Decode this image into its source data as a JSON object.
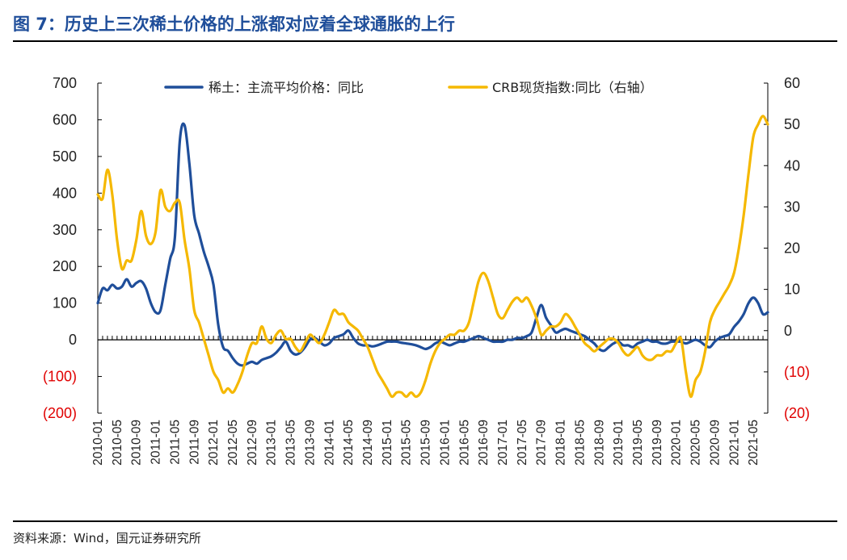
{
  "page": {
    "title": "图 7：历史上三次稀土价格的上涨都对应着全球通胀的上行",
    "source": "资料来源：Wind，国元证券研究所"
  },
  "colors": {
    "title": "#1f4e9a",
    "series_rare_earth": "#1f4e9a",
    "series_crb": "#f5b800",
    "negative_tick": "#e00000",
    "tick": "#222222"
  },
  "chart_data": {
    "type": "line",
    "title": "",
    "x": [
      "2010-01",
      "2010-02",
      "2010-03",
      "2010-04",
      "2010-05",
      "2010-06",
      "2010-07",
      "2010-08",
      "2010-09",
      "2010-10",
      "2010-11",
      "2010-12",
      "2011-01",
      "2011-02",
      "2011-03",
      "2011-04",
      "2011-05",
      "2011-06",
      "2011-07",
      "2011-08",
      "2011-09",
      "2011-10",
      "2011-11",
      "2011-12",
      "2012-01",
      "2012-02",
      "2012-03",
      "2012-04",
      "2012-05",
      "2012-06",
      "2012-07",
      "2012-08",
      "2012-09",
      "2012-10",
      "2012-11",
      "2012-12",
      "2013-01",
      "2013-02",
      "2013-03",
      "2013-04",
      "2013-05",
      "2013-06",
      "2013-07",
      "2013-08",
      "2013-09",
      "2013-10",
      "2013-11",
      "2013-12",
      "2014-01",
      "2014-02",
      "2014-03",
      "2014-04",
      "2014-05",
      "2014-06",
      "2014-07",
      "2014-08",
      "2014-09",
      "2014-10",
      "2014-11",
      "2014-12",
      "2015-01",
      "2015-02",
      "2015-03",
      "2015-04",
      "2015-05",
      "2015-06",
      "2015-07",
      "2015-08",
      "2015-09",
      "2015-10",
      "2015-11",
      "2015-12",
      "2016-01",
      "2016-02",
      "2016-03",
      "2016-04",
      "2016-05",
      "2016-06",
      "2016-07",
      "2016-08",
      "2016-09",
      "2016-10",
      "2016-11",
      "2016-12",
      "2017-01",
      "2017-02",
      "2017-03",
      "2017-04",
      "2017-05",
      "2017-06",
      "2017-07",
      "2017-08",
      "2017-09",
      "2017-10",
      "2017-11",
      "2017-12",
      "2018-01",
      "2018-02",
      "2018-03",
      "2018-04",
      "2018-05",
      "2018-06",
      "2018-07",
      "2018-08",
      "2018-09",
      "2018-10",
      "2018-11",
      "2018-12",
      "2019-01",
      "2019-02",
      "2019-03",
      "2019-04",
      "2019-05",
      "2019-06",
      "2019-07",
      "2019-08",
      "2019-09",
      "2019-10",
      "2019-11",
      "2019-12",
      "2020-01",
      "2020-02",
      "2020-03",
      "2020-04",
      "2020-05",
      "2020-06",
      "2020-07",
      "2020-08",
      "2020-09",
      "2020-10",
      "2020-11",
      "2020-12",
      "2021-01",
      "2021-02",
      "2021-03",
      "2021-04",
      "2021-05",
      "2021-06",
      "2021-07",
      "2021-08"
    ],
    "x_tick_labels": [
      "2010-01",
      "2010-05",
      "2010-09",
      "2011-01",
      "2011-05",
      "2011-09",
      "2012-01",
      "2012-05",
      "2012-09",
      "2013-01",
      "2013-05",
      "2013-09",
      "2014-01",
      "2014-05",
      "2014-09",
      "2015-01",
      "2015-05",
      "2015-09",
      "2016-01",
      "2016-05",
      "2016-09",
      "2017-01",
      "2017-05",
      "2017-09",
      "2018-01",
      "2018-05",
      "2018-09",
      "2019-01",
      "2019-05",
      "2019-09",
      "2020-01",
      "2020-05",
      "2020-09",
      "2021-01",
      "2021-05"
    ],
    "y_left": {
      "ylim": [
        -200,
        700
      ],
      "ticks": [
        700,
        600,
        500,
        400,
        300,
        200,
        100,
        0,
        -100,
        -200
      ],
      "tick_labels": [
        "700",
        "600",
        "500",
        "400",
        "300",
        "200",
        "100",
        "0",
        "(100)",
        "(200)"
      ]
    },
    "y_right": {
      "ylim": [
        -20,
        60
      ],
      "ticks": [
        60,
        50,
        40,
        30,
        20,
        10,
        0,
        -10,
        -20
      ],
      "tick_labels": [
        "60",
        "50",
        "40",
        "30",
        "20",
        "10",
        "0",
        "(10)",
        "(20)"
      ]
    },
    "legend": {
      "placement": "top-center"
    },
    "series": [
      {
        "name": "稀土：主流平均价格：同比",
        "axis": "left",
        "values": [
          100,
          140,
          135,
          150,
          140,
          145,
          165,
          145,
          155,
          160,
          140,
          100,
          75,
          80,
          150,
          220,
          280,
          540,
          585,
          480,
          340,
          290,
          240,
          200,
          150,
          40,
          -20,
          -30,
          -50,
          -65,
          -70,
          -65,
          -60,
          -65,
          -55,
          -50,
          -45,
          -35,
          -20,
          -5,
          -30,
          -40,
          -35,
          -20,
          0,
          5,
          -5,
          -15,
          -10,
          5,
          10,
          15,
          25,
          5,
          -10,
          -15,
          -15,
          -18,
          -15,
          -10,
          -5,
          -5,
          -5,
          -8,
          -10,
          -12,
          -15,
          -20,
          -25,
          -20,
          -10,
          -5,
          -10,
          -15,
          -10,
          -5,
          -5,
          0,
          5,
          10,
          5,
          0,
          -5,
          -5,
          -5,
          0,
          0,
          5,
          5,
          10,
          20,
          60,
          95,
          60,
          40,
          20,
          25,
          30,
          25,
          20,
          15,
          10,
          0,
          -10,
          -25,
          -30,
          -20,
          -10,
          -5,
          -15,
          -15,
          -20,
          -10,
          -5,
          0,
          -5,
          -5,
          -10,
          -10,
          -5,
          -5,
          -5,
          -10,
          -5,
          0,
          -5,
          -15,
          -20,
          -5,
          5,
          10,
          15,
          35,
          50,
          70,
          100,
          115,
          100,
          70,
          75
        ]
      },
      {
        "name": "CRB现货指数:同比（右轴）",
        "axis": "right",
        "values": [
          33,
          32,
          39,
          33,
          22,
          15,
          17,
          17,
          22,
          29,
          23,
          21,
          24,
          34,
          30,
          29,
          31,
          31,
          22,
          15,
          5,
          2,
          -2,
          -6,
          -10,
          -12,
          -15,
          -14,
          -15,
          -13,
          -10,
          -6,
          -3,
          -3,
          1,
          -2,
          -3,
          -1,
          0,
          -2,
          -2,
          -4,
          -5,
          -3,
          -1,
          -2,
          -3,
          -1,
          2,
          5,
          4,
          4,
          2,
          1,
          0,
          -2,
          -4,
          -7,
          -10,
          -12,
          -14,
          -16,
          -15,
          -15,
          -16,
          -15,
          -16,
          -15,
          -12,
          -8,
          -5,
          -3,
          -2,
          -1,
          -1,
          0,
          0,
          2,
          7,
          12,
          14,
          12,
          8,
          4,
          3,
          5,
          7,
          8,
          7,
          8,
          6,
          3,
          -1,
          0,
          1,
          1,
          2,
          4,
          3,
          1,
          -1,
          -3,
          -4,
          -5,
          -4,
          -3,
          -2,
          -2,
          -3,
          -5,
          -6,
          -5,
          -4,
          -6,
          -7,
          -7,
          -6,
          -6,
          -5,
          -5,
          -3,
          -2,
          -10,
          -16,
          -12,
          -10,
          -5,
          2,
          5,
          7,
          9,
          11,
          14,
          20,
          28,
          38,
          47,
          50,
          52,
          50
        ]
      }
    ]
  }
}
